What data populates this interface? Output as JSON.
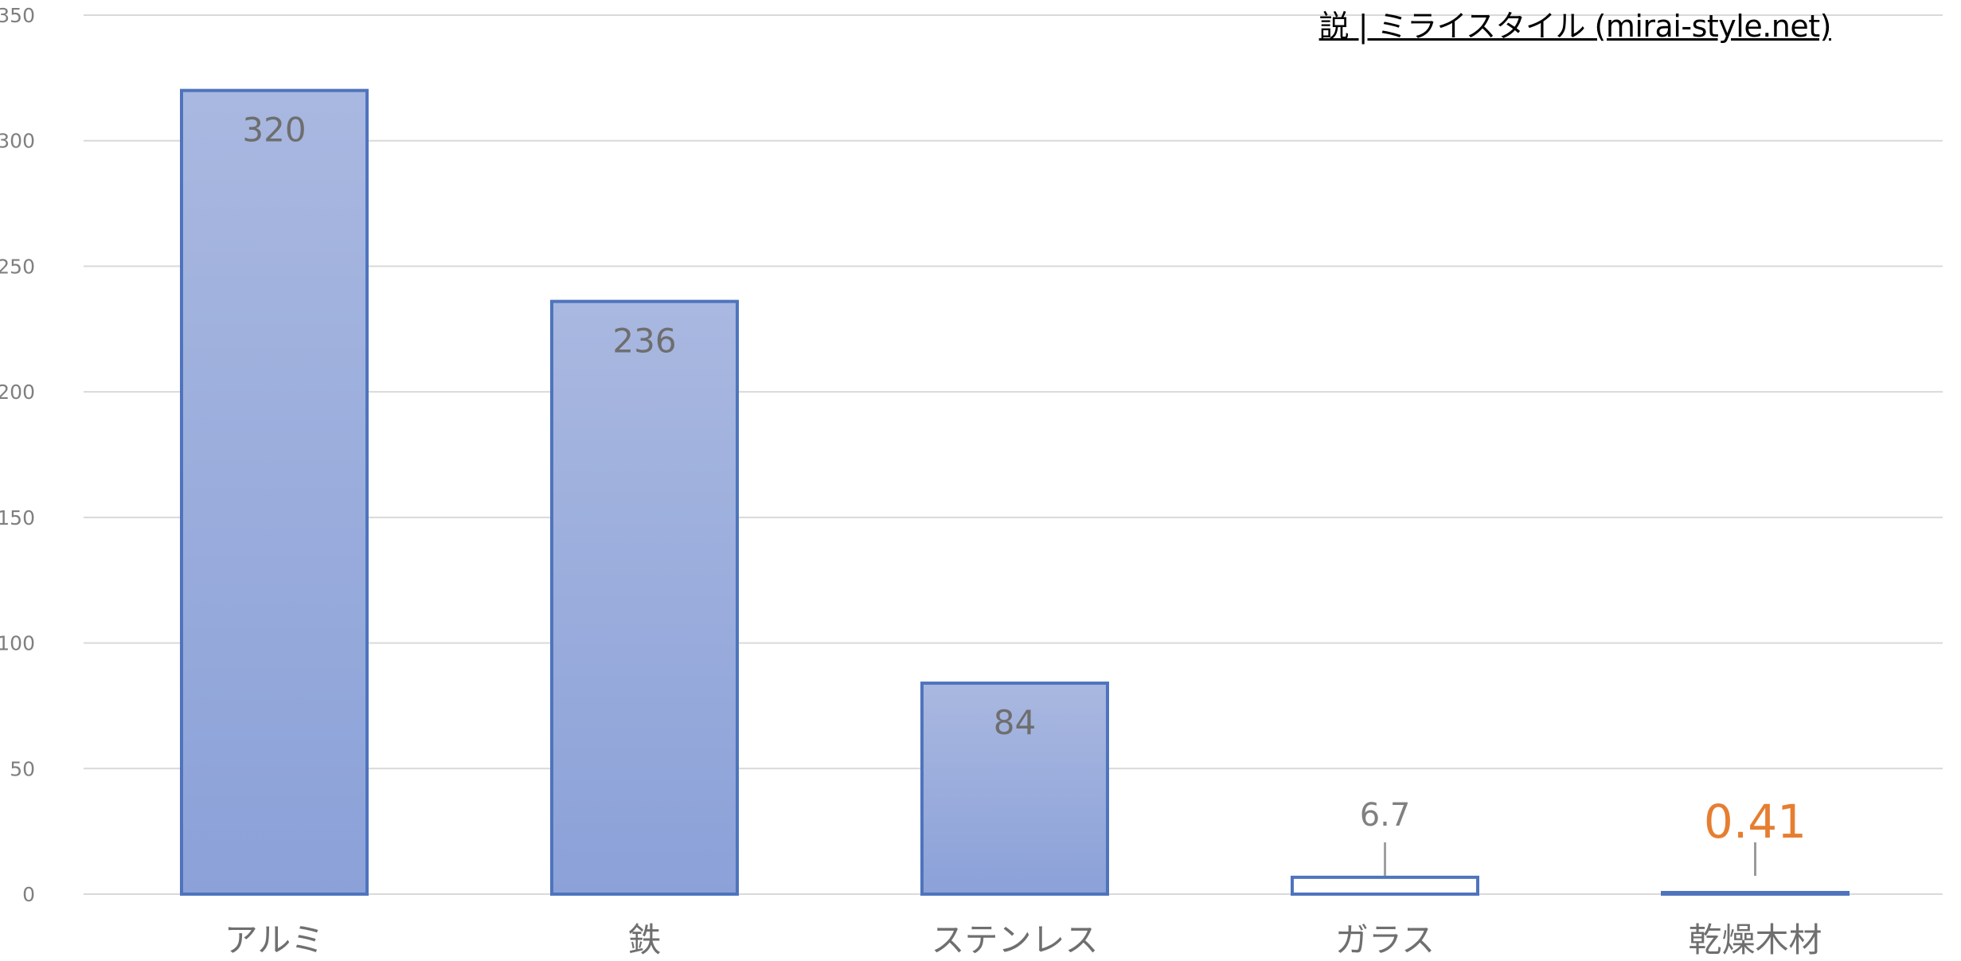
{
  "source_link": "説 | ミライスタイル (mirai-style.net)",
  "chart_data": {
    "type": "bar",
    "categories": [
      "アルミ",
      "鉄",
      "ステンレス",
      "ガラス",
      "乾燥木材"
    ],
    "values": [
      320,
      236,
      84,
      6.7,
      0.41
    ],
    "data_labels": [
      "320",
      "236",
      "84",
      "6.7",
      "0.41"
    ],
    "ylim": [
      0,
      350
    ],
    "yticks": [
      0,
      50,
      100,
      150,
      200,
      250,
      300,
      350
    ],
    "grid": true,
    "title": "",
    "xlabel": "",
    "ylabel": "",
    "colors": {
      "bar_top": "#a9b8e0",
      "bar_bottom": "#8ba1d8",
      "bar_stroke": "#4f74bd",
      "grid": "#d9d9d9",
      "tick_text": "#7f7f7f",
      "category_text": "#6f6f6f",
      "label_inside": "#6e6e6e",
      "label_outside": "#808080",
      "label_highlight": "#e67e31"
    },
    "highlight_index": 4
  }
}
